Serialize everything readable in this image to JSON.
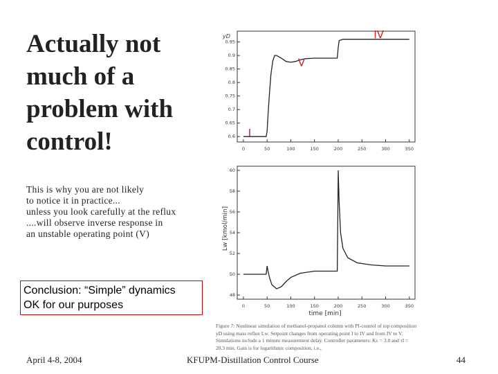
{
  "title": {
    "lines": [
      "Actually not",
      "much of a",
      "problem with",
      "control!"
    ]
  },
  "body": {
    "lines": [
      "This is why you are not likely",
      "to notice it in practice...",
      "unless you look carefully at the reflux",
      "....will observe inverse response in",
      "an unstable operating point (V)"
    ]
  },
  "conclusion": {
    "lines": [
      "Conclusion: “Simple” dynamics",
      "OK for our purposes"
    ]
  },
  "footer": {
    "date": "April 4-8, 2004",
    "course": "KFUPM-Distillation Control Course",
    "page": "44"
  },
  "figure": {
    "caption": "Figure 7: Nonlinear simulation of methanol-propanol column with PI-control of top composition yD using mass reflux Lw. Setpoint changes from operating point I to IV and from IV to V. Simulations include a 1 minute measurement delay. Controller parameters: Kc = 3.0 and τI = 20.3 min. Gain is for logarithmic composition, i.e.,",
    "top": {
      "ylabel": "yD",
      "xlim": [
        -13,
        362
      ],
      "ylim": [
        0.58,
        0.99
      ],
      "xticks": [
        0,
        50,
        100,
        150,
        200,
        250,
        300,
        350
      ],
      "yticks": [
        0.6,
        0.65,
        0.7,
        0.75,
        0.8,
        0.85,
        0.9,
        0.95
      ],
      "annotations": [
        {
          "text": "IV",
          "x": 275,
          "y": 0.965
        },
        {
          "text": "V",
          "x": 115,
          "y": 0.86
        },
        {
          "text": "I",
          "x": 10,
          "y": 0.6
        }
      ],
      "annotation_color": "#cc2222",
      "x": [
        0,
        48,
        50,
        52,
        55,
        58,
        62,
        66,
        70,
        80,
        90,
        100,
        110,
        120,
        130,
        150,
        170,
        198,
        200,
        202,
        210,
        250,
        300,
        350
      ],
      "y": [
        0.6,
        0.6,
        0.62,
        0.68,
        0.76,
        0.83,
        0.88,
        0.9,
        0.9,
        0.89,
        0.878,
        0.875,
        0.878,
        0.884,
        0.888,
        0.89,
        0.89,
        0.89,
        0.93,
        0.955,
        0.96,
        0.96,
        0.96,
        0.96
      ]
    },
    "bottom": {
      "ylabel": "Lw [kmol/min]",
      "xlabel": "time [min]",
      "xlim": [
        -13,
        362
      ],
      "ylim": [
        47.6,
        60.4
      ],
      "xticks": [
        0,
        50,
        100,
        150,
        200,
        250,
        300,
        350
      ],
      "yticks": [
        48,
        50,
        52,
        54,
        56,
        58,
        60
      ],
      "x": [
        0,
        48,
        50,
        52,
        55,
        60,
        70,
        80,
        90,
        100,
        120,
        150,
        198,
        199,
        200,
        202,
        205,
        210,
        220,
        240,
        270,
        300,
        350
      ],
      "y": [
        50,
        50,
        50.8,
        50.3,
        49.7,
        49,
        48.6,
        48.8,
        49.3,
        49.7,
        50.1,
        50.3,
        50.3,
        55,
        60,
        57,
        54,
        52.5,
        51.6,
        51.1,
        50.9,
        50.8,
        50.8
      ]
    }
  }
}
